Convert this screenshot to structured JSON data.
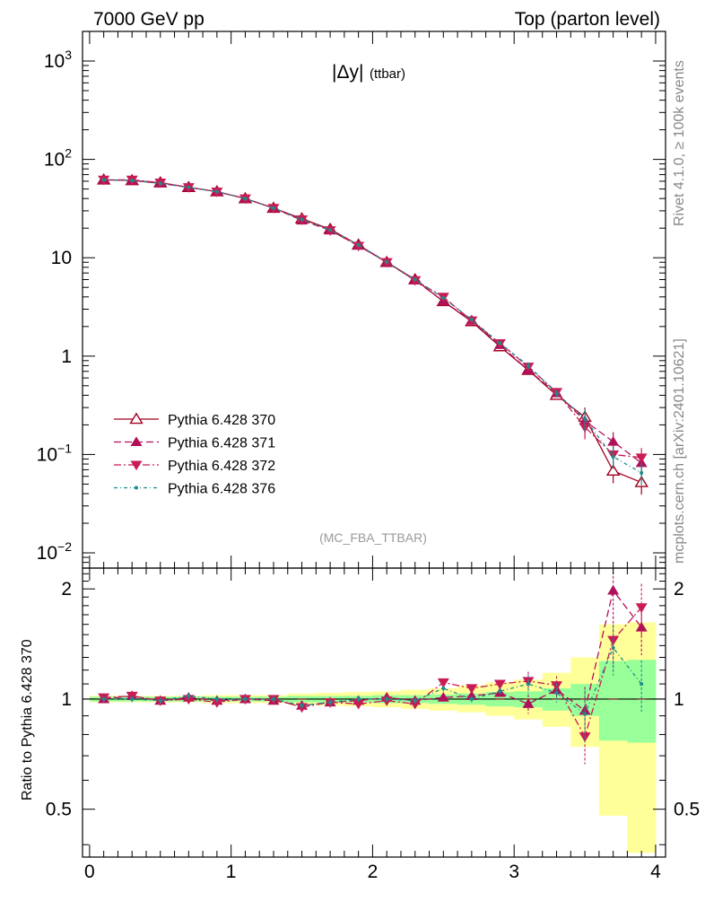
{
  "header": {
    "left_title": "7000 GeV pp",
    "right_title": "Top (parton level)",
    "side_label_top": "Rivet 4.1.0, ≥ 100k events",
    "side_label_bottom": "mcplots.cern.ch [arXiv:2401.10621]"
  },
  "chart_data": {
    "type": "line",
    "title": "|Δy| (ttbar)",
    "title_main": "|Δy|",
    "title_sub": "(ttbar)",
    "analysis_label": "(MC_FBA_TTBAR)",
    "xlabel": "",
    "ylabel": "",
    "ratio_ylabel": "Ratio to Pythia 6.428 370",
    "xlim": [
      -0.05,
      4.07
    ],
    "ylim": [
      0.007,
      2000
    ],
    "yscale": "log",
    "ratio_ylim": [
      0.37,
      2.28
    ],
    "x_tick_labels": [
      "0",
      "1",
      "2",
      "3",
      "4"
    ],
    "y_tick_labels": [
      "10^-2",
      "10^-1",
      "1",
      "10",
      "10^2",
      "10^3"
    ],
    "ratio_tick_labels": [
      "0.5",
      "1",
      "2"
    ],
    "x": [
      0.1,
      0.3,
      0.5,
      0.7,
      0.9,
      1.1,
      1.3,
      1.5,
      1.7,
      1.9,
      2.1,
      2.3,
      2.5,
      2.7,
      2.9,
      3.1,
      3.3,
      3.5,
      3.7,
      3.9
    ],
    "series": [
      {
        "name": "Pythia 6.428 370",
        "color": "#a0001f",
        "marker": "triangle-open",
        "dash": "",
        "values": [
          62,
          61,
          58,
          52,
          47,
          40,
          32,
          25,
          19.5,
          13.5,
          9.0,
          6.0,
          3.6,
          2.25,
          1.25,
          0.72,
          0.4,
          0.24,
          0.068,
          0.052
        ],
        "ratio": [
          1,
          1,
          1,
          1,
          1,
          1,
          1,
          1,
          1,
          1,
          1,
          1,
          1,
          1,
          1,
          1,
          1,
          1,
          1,
          1
        ]
      },
      {
        "name": "Pythia 6.428 371",
        "color": "#b0105a",
        "marker": "triangle-up",
        "dash": "8,4",
        "values": [
          62,
          61,
          57,
          52,
          47,
          40,
          32,
          24,
          19.0,
          13.3,
          9.0,
          5.9,
          3.6,
          2.3,
          1.3,
          0.72,
          0.42,
          0.22,
          0.135,
          0.082
        ],
        "ratio": [
          1.0,
          1.02,
          0.99,
          1.01,
          0.99,
          1.0,
          0.99,
          0.96,
          0.98,
          0.99,
          1.01,
          0.99,
          1.01,
          1.02,
          1.04,
          0.97,
          1.06,
          0.93,
          1.98,
          1.57
        ]
      },
      {
        "name": "Pythia 6.428 372",
        "color": "#c81c55",
        "marker": "triangle-down",
        "dash": "8,3,2,3",
        "values": [
          62,
          62,
          58,
          52,
          47,
          40,
          32,
          24.5,
          19.0,
          13.2,
          9.0,
          5.9,
          4.0,
          2.3,
          1.35,
          0.78,
          0.43,
          0.19,
          0.1,
          0.093
        ],
        "ratio": [
          1.01,
          1.02,
          0.99,
          1.0,
          0.98,
          1.0,
          1.0,
          0.95,
          0.98,
          0.97,
          0.99,
          0.97,
          1.11,
          1.07,
          1.1,
          1.12,
          1.09,
          0.79,
          1.45,
          1.78
        ]
      },
      {
        "name": "Pythia 6.428 376",
        "color": "#1d8b8b",
        "marker": "dot",
        "dash": "4,3,1,3",
        "values": [
          62,
          61,
          57,
          52,
          47,
          40,
          32,
          24.5,
          19.2,
          13.5,
          9.1,
          6.0,
          3.9,
          2.35,
          1.35,
          0.8,
          0.42,
          0.23,
          0.095,
          0.065
        ],
        "ratio": [
          1.0,
          1.0,
          0.99,
          1.02,
          1.0,
          1.0,
          1.0,
          0.96,
          0.98,
          1.0,
          1.0,
          0.99,
          1.07,
          1.0,
          1.05,
          1.1,
          1.04,
          0.91,
          1.38,
          1.1
        ]
      }
    ],
    "ratio_bands": {
      "inner_color": "#99ff99",
      "outer_color": "#ffff99",
      "inner": [
        [
          0.985,
          1.015
        ],
        [
          0.985,
          1.015
        ],
        [
          0.985,
          1.015
        ],
        [
          0.985,
          1.015
        ],
        [
          0.985,
          1.015
        ],
        [
          0.985,
          1.015
        ],
        [
          0.985,
          1.015
        ],
        [
          0.98,
          1.02
        ],
        [
          0.98,
          1.02
        ],
        [
          0.98,
          1.02
        ],
        [
          0.975,
          1.025
        ],
        [
          0.975,
          1.025
        ],
        [
          0.97,
          1.03
        ],
        [
          0.965,
          1.035
        ],
        [
          0.955,
          1.045
        ],
        [
          0.95,
          1.05
        ],
        [
          0.93,
          1.07
        ],
        [
          0.9,
          1.1
        ],
        [
          0.77,
          1.27
        ],
        [
          0.76,
          1.28
        ]
      ],
      "outer": [
        [
          0.98,
          1.02
        ],
        [
          0.98,
          1.02
        ],
        [
          0.98,
          1.02
        ],
        [
          0.98,
          1.02
        ],
        [
          0.975,
          1.025
        ],
        [
          0.975,
          1.025
        ],
        [
          0.975,
          1.025
        ],
        [
          0.965,
          1.035
        ],
        [
          0.96,
          1.04
        ],
        [
          0.955,
          1.045
        ],
        [
          0.95,
          1.05
        ],
        [
          0.94,
          1.06
        ],
        [
          0.93,
          1.07
        ],
        [
          0.92,
          1.09
        ],
        [
          0.9,
          1.11
        ],
        [
          0.88,
          1.13
        ],
        [
          0.84,
          1.18
        ],
        [
          0.74,
          1.3
        ],
        [
          0.48,
          1.6
        ],
        [
          0.38,
          1.62
        ]
      ]
    }
  }
}
